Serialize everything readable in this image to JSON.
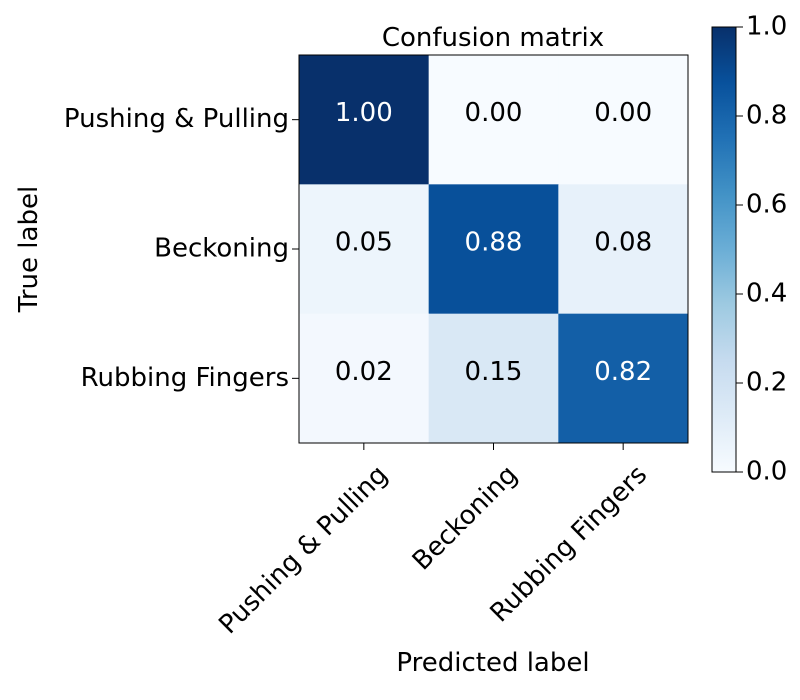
{
  "chart_data": {
    "type": "heatmap",
    "title": "Confusion matrix",
    "xlabel": "Predicted label",
    "ylabel": "True label",
    "x_categories": [
      "Pushing & Pulling",
      "Beckoning",
      "Rubbing Fingers"
    ],
    "y_categories": [
      "Pushing & Pulling",
      "Beckoning",
      "Rubbing Fingers"
    ],
    "values": [
      [
        1.0,
        0.0,
        0.0
      ],
      [
        0.05,
        0.88,
        0.08
      ],
      [
        0.02,
        0.15,
        0.82
      ]
    ],
    "cell_labels": [
      [
        "1.00",
        "0.00",
        "0.00"
      ],
      [
        "0.05",
        "0.88",
        "0.08"
      ],
      [
        "0.02",
        "0.15",
        "0.82"
      ]
    ],
    "colormap": "Blues",
    "vmin": 0.0,
    "vmax": 1.0,
    "colorbar_ticks": [
      0.0,
      0.2,
      0.4,
      0.6,
      0.8,
      1.0
    ],
    "colorbar_tick_labels": [
      "0.0",
      "0.2",
      "0.4",
      "0.6",
      "0.8",
      "1.0"
    ]
  }
}
